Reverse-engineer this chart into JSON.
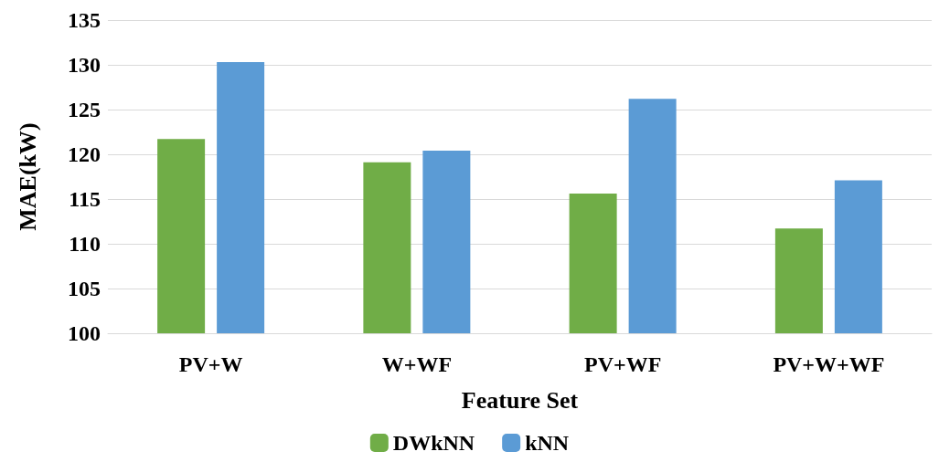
{
  "chart_data": {
    "type": "bar",
    "xlabel": "Feature Set",
    "ylabel": "MAE(kW)",
    "categories": [
      "PV+W",
      "W+WF",
      "PV+WF",
      "PV+W+WF"
    ],
    "series": [
      {
        "name": "DWkNN",
        "color": "#70ad47",
        "values": [
          121.7,
          119.1,
          115.6,
          111.7
        ]
      },
      {
        "name": "kNN",
        "color": "#5b9bd5",
        "values": [
          130.3,
          120.4,
          126.2,
          117.1
        ]
      }
    ],
    "ylim": [
      100,
      135
    ],
    "yticks": [
      100,
      105,
      110,
      115,
      120,
      125,
      130,
      135
    ],
    "grid": "y",
    "legend": "bottom"
  }
}
